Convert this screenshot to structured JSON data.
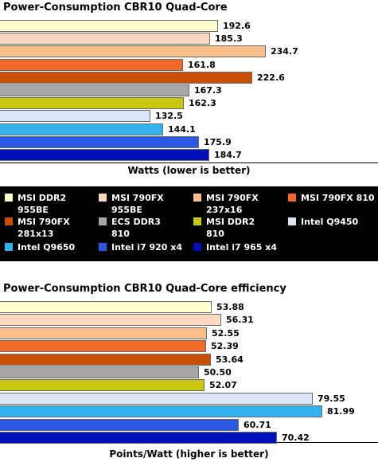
{
  "legend": [
    {
      "name": "MSI DDR2\n955BE",
      "color": "#ffffd0"
    },
    {
      "name": "MSI 790FX\n955BE",
      "color": "#fdd8c0"
    },
    {
      "name": "MSI 790FX\n237x16",
      "color": "#fbbf8c"
    },
    {
      "name": "MSI 790FX 810",
      "color": "#f26a2a"
    },
    {
      "name": "MSI 790FX\n281x13",
      "color": "#c85005"
    },
    {
      "name": "ECS DDR3\n810",
      "color": "#a7a7a7"
    },
    {
      "name": "MSI DDR2\n810",
      "color": "#c9c710"
    },
    {
      "name": "Intel Q9450",
      "color": "#dce6f7"
    },
    {
      "name": "Intel Q9650",
      "color": "#33b0ee"
    },
    {
      "name": "Intel i7 920 x4",
      "color": "#2a58e2"
    },
    {
      "name": "Intel i7 965 x4",
      "color": "#0010b8"
    }
  ],
  "chart_data": [
    {
      "type": "bar",
      "orientation": "horizontal",
      "title": "Power-Consumption CBR10 Quad-Core",
      "xlabel": "Watts (lower is better)",
      "ylabel": "",
      "categories": [
        "MSI DDR2 955BE",
        "MSI 790FX 955BE",
        "MSI 790FX 237x16",
        "MSI 790FX 810",
        "MSI 790FX 281x13",
        "ECS DDR3 810",
        "MSI DDR2 810",
        "Intel Q9450",
        "Intel Q9650",
        "Intel i7 920 x4",
        "Intel i7 965 x4"
      ],
      "values": [
        192.6,
        185.3,
        234.7,
        161.8,
        222.6,
        167.3,
        162.3,
        132.5,
        144.1,
        175.9,
        184.7
      ],
      "labels": [
        "192.6",
        "185.3",
        "234.7",
        "161.8",
        "222.6",
        "167.3",
        "162.3",
        "132.5",
        "144.1",
        "175.9",
        "184.7"
      ],
      "xlim": [
        0,
        240
      ],
      "grid": false,
      "legend": "between charts"
    },
    {
      "type": "bar",
      "orientation": "horizontal",
      "title": "Power-Consumption CBR10 Quad-Core efficiency",
      "xlabel": "Points/Watt (higher is better)",
      "ylabel": "",
      "categories": [
        "MSI DDR2 955BE",
        "MSI 790FX 955BE",
        "MSI 790FX 237x16",
        "MSI 790FX 810",
        "MSI 790FX 281x13",
        "ECS DDR3 810",
        "MSI DDR2 810",
        "Intel Q9450",
        "Intel Q9650",
        "Intel i7 920 x4",
        "Intel i7 965 x4"
      ],
      "values": [
        53.88,
        56.31,
        52.55,
        52.39,
        53.64,
        50.5,
        52.07,
        79.55,
        81.99,
        60.71,
        70.42
      ],
      "labels": [
        "53.88",
        "56.31",
        "52.55",
        "52.39",
        "53.64",
        "50.50",
        "52.07",
        "79.55",
        "81.99",
        "60.71",
        "70.42"
      ],
      "xlim": [
        0,
        84
      ],
      "grid": false,
      "legend": "between charts"
    }
  ]
}
